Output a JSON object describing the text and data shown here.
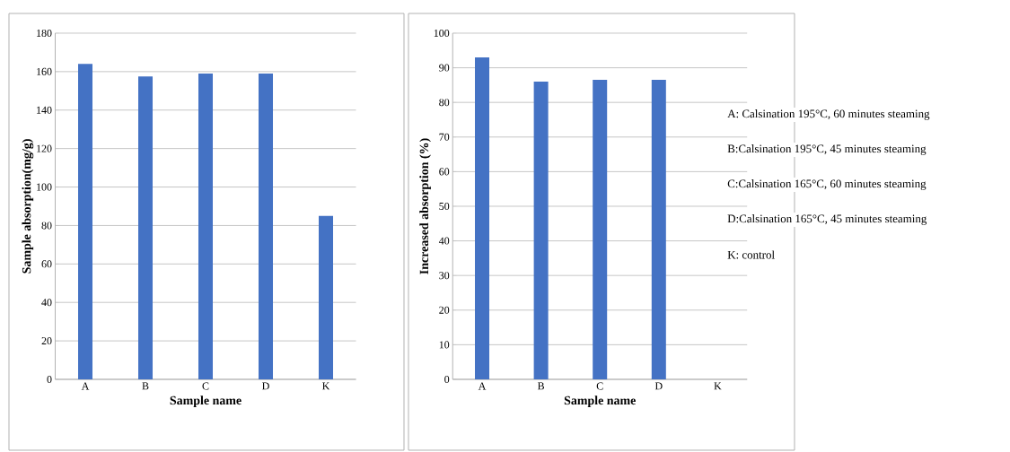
{
  "chart_data": [
    {
      "type": "bar",
      "xlabel": "Sample name",
      "ylabel": "Sample absorption(mg/g)",
      "categories": [
        "A",
        "B",
        "C",
        "D",
        "K"
      ],
      "values": [
        164,
        157.5,
        159,
        159,
        85
      ],
      "color": "#4472c4",
      "ylim": [
        0,
        180
      ],
      "yticks": [
        0,
        20,
        40,
        60,
        80,
        100,
        120,
        140,
        160,
        180
      ],
      "grid": "y"
    },
    {
      "type": "bar",
      "xlabel": "Sample name",
      "ylabel": "Increased absorption (%)",
      "categories": [
        "A",
        "B",
        "C",
        "D",
        "K"
      ],
      "values": [
        93,
        86,
        86.5,
        86.5,
        0
      ],
      "color": "#4472c4",
      "ylim": [
        0,
        100
      ],
      "yticks": [
        0,
        10,
        20,
        30,
        40,
        50,
        60,
        70,
        80,
        90,
        100
      ],
      "grid": "y",
      "annotations": [
        "A:  Calsination 195°C,  60 minutes steaming",
        "B:Calsination 195°C,  45 minutes steaming",
        "C:Calsination 165°C,  60 minutes steaming",
        "D:Calsination 165°C,  45 minutes steaming",
        "K: control"
      ]
    }
  ]
}
